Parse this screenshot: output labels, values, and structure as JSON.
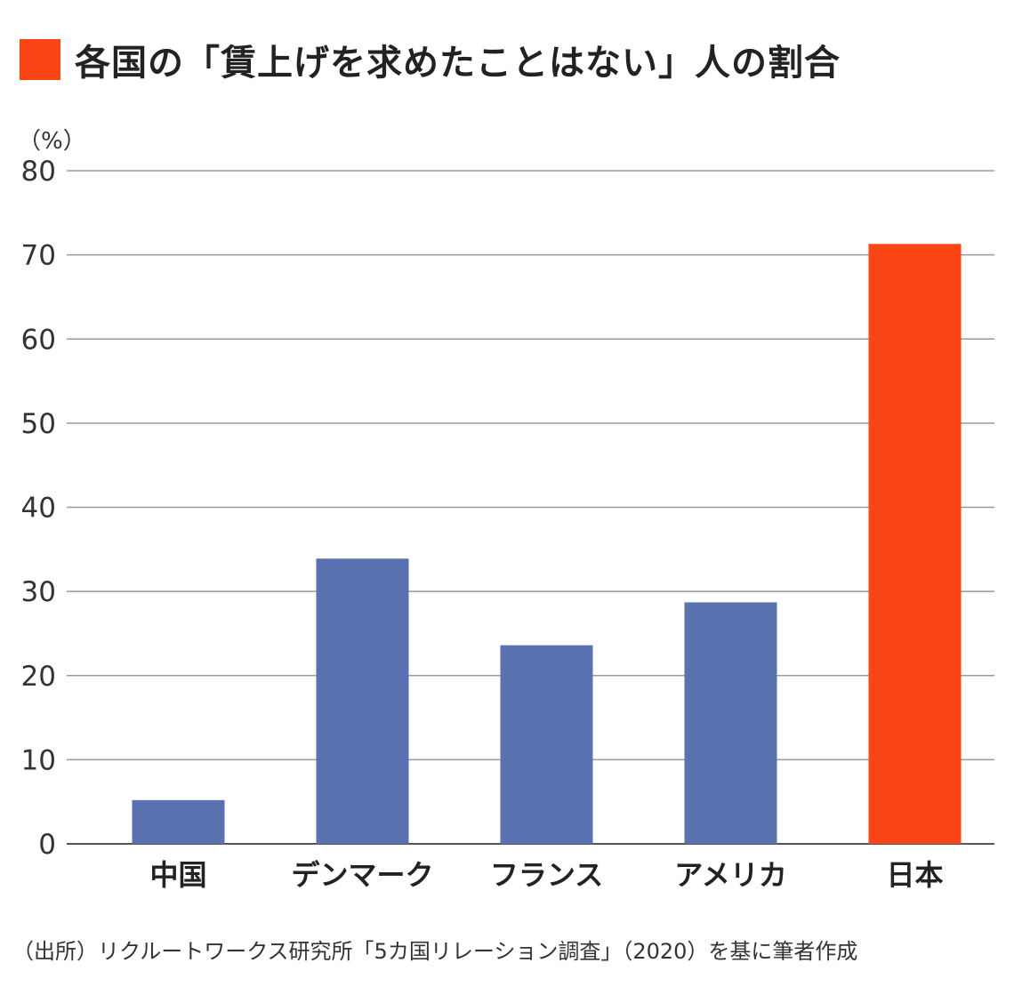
{
  "title": "各国の「賃上げを求めたことはない」人の割合",
  "unit_label": "（%）",
  "source": "（出所）リクルートワークス研究所「5カ国リレーション調査」（2020）を基に筆者作成",
  "colors": {
    "accent": "#fb4514",
    "bar_default": "#5b72b2",
    "grid": "#9a9a9a",
    "axis": "#555555"
  },
  "chart_data": {
    "type": "bar",
    "title": "各国の「賃上げを求めたことはない」人の割合",
    "xlabel": "",
    "ylabel": "（%）",
    "categories": [
      "中国",
      "デンマーク",
      "フランス",
      "アメリカ",
      "日本"
    ],
    "values": [
      5.2,
      33.9,
      23.6,
      28.7,
      71.3
    ],
    "highlight": "日本",
    "ylim": [
      0,
      80
    ],
    "yticks": [
      0,
      10,
      20,
      30,
      40,
      50,
      60,
      70,
      80
    ],
    "grid": true,
    "legend": "none"
  }
}
